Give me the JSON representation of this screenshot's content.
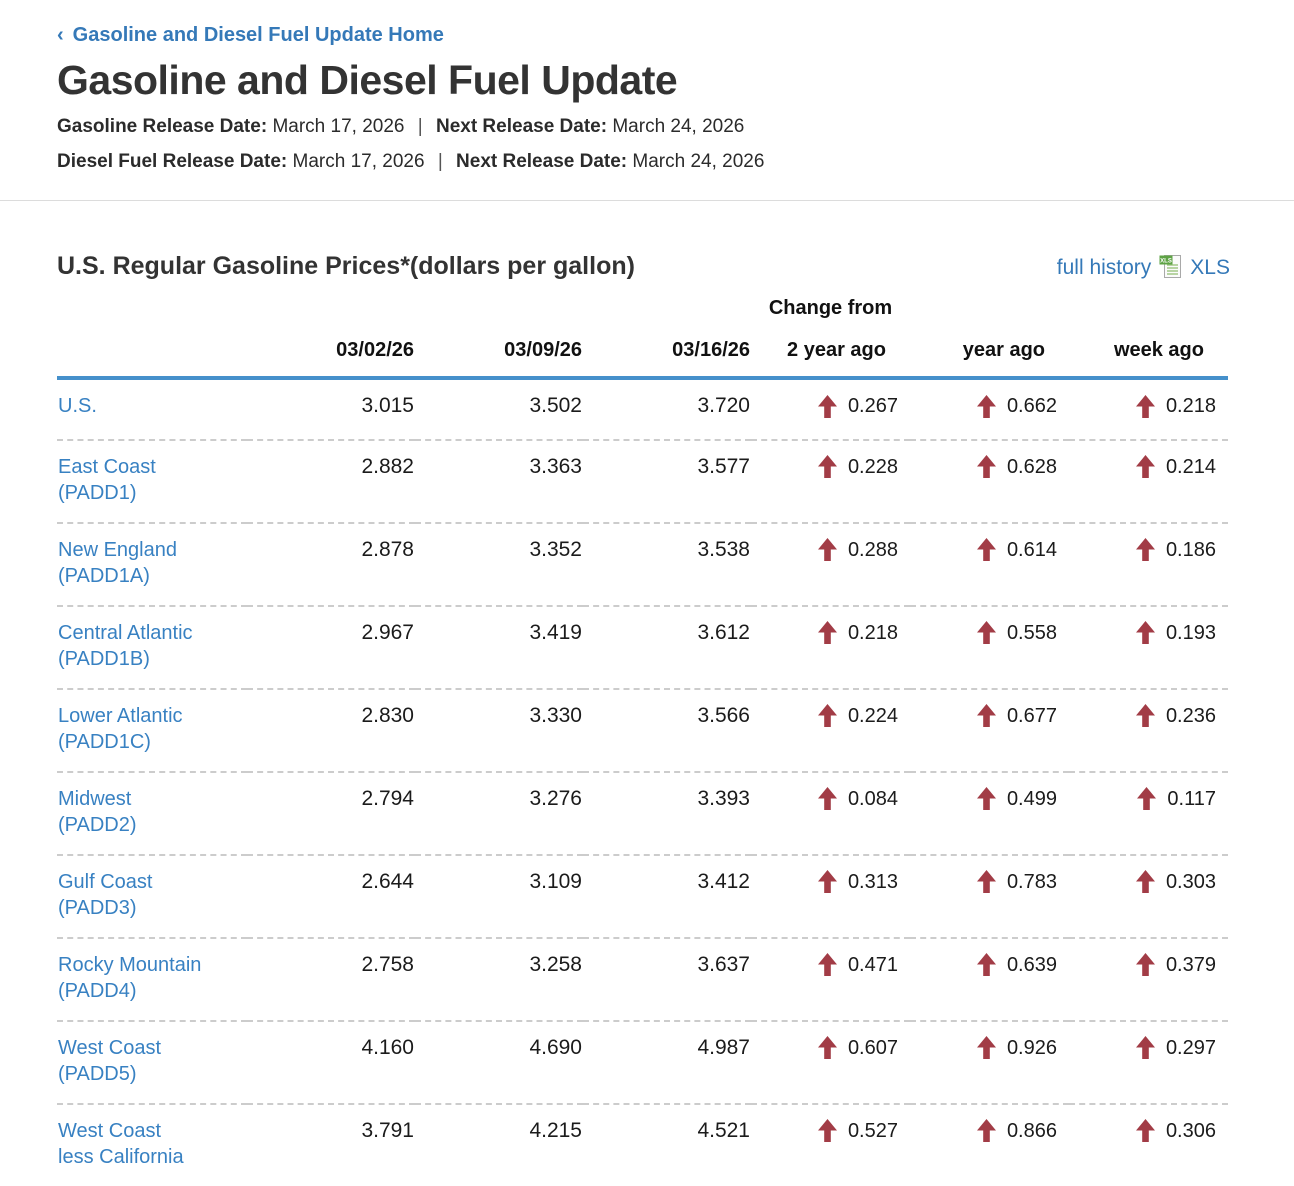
{
  "breadcrumb": {
    "chevron": "‹",
    "label": "Gasoline and Diesel Fuel Update Home"
  },
  "header": {
    "title": "Gasoline and Diesel Fuel Update",
    "release_lines": [
      {
        "label1": "Gasoline Release Date:",
        "value1": "March 17, 2026",
        "separator": "|",
        "label2": "Next Release Date:",
        "value2": "March 24, 2026"
      },
      {
        "label1": "Diesel Fuel Release Date:",
        "value1": "March 17, 2026",
        "separator": "|",
        "label2": "Next Release Date:",
        "value2": "March 24, 2026"
      }
    ]
  },
  "section": {
    "heading": "U.S. Regular Gasoline Prices*(dollars per gallon)",
    "full_history_label": "full history",
    "xls_label": "XLS",
    "xls_icon_badge": "XLS"
  },
  "colors": {
    "link_blue": "#3579b8",
    "region_link_blue": "#3881c2",
    "header_rule_blue": "#4590cb",
    "arrow_up_red": "#a23c46",
    "xls_green": "#5ea345"
  },
  "chart_data": {
    "type": "table",
    "title": "U.S. Regular Gasoline Prices*(dollars per gallon)",
    "change_from_label": "Change from",
    "columns": [
      "03/02/26",
      "03/09/26",
      "03/16/26",
      "2 year ago",
      "year ago",
      "week ago"
    ],
    "change_direction": "up",
    "rows": [
      {
        "region": [
          "U.S."
        ],
        "prices": [
          "3.015",
          "3.502",
          "3.720"
        ],
        "changes": [
          "0.267",
          "0.662",
          "0.218"
        ]
      },
      {
        "region": [
          "East Coast",
          "(PADD1)"
        ],
        "prices": [
          "2.882",
          "3.363",
          "3.577"
        ],
        "changes": [
          "0.228",
          "0.628",
          "0.214"
        ]
      },
      {
        "region": [
          "New England",
          "(PADD1A)"
        ],
        "prices": [
          "2.878",
          "3.352",
          "3.538"
        ],
        "changes": [
          "0.288",
          "0.614",
          "0.186"
        ]
      },
      {
        "region": [
          "Central Atlantic",
          "(PADD1B)"
        ],
        "prices": [
          "2.967",
          "3.419",
          "3.612"
        ],
        "changes": [
          "0.218",
          "0.558",
          "0.193"
        ]
      },
      {
        "region": [
          "Lower Atlantic",
          "(PADD1C)"
        ],
        "prices": [
          "2.830",
          "3.330",
          "3.566"
        ],
        "changes": [
          "0.224",
          "0.677",
          "0.236"
        ]
      },
      {
        "region": [
          "Midwest",
          "(PADD2)"
        ],
        "prices": [
          "2.794",
          "3.276",
          "3.393"
        ],
        "changes": [
          "0.084",
          "0.499",
          "0.117"
        ]
      },
      {
        "region": [
          "Gulf Coast",
          "(PADD3)"
        ],
        "prices": [
          "2.644",
          "3.109",
          "3.412"
        ],
        "changes": [
          "0.313",
          "0.783",
          "0.303"
        ]
      },
      {
        "region": [
          "Rocky Mountain",
          "(PADD4)"
        ],
        "prices": [
          "2.758",
          "3.258",
          "3.637"
        ],
        "changes": [
          "0.471",
          "0.639",
          "0.379"
        ]
      },
      {
        "region": [
          "West Coast",
          "(PADD5)"
        ],
        "prices": [
          "4.160",
          "4.690",
          "4.987"
        ],
        "changes": [
          "0.607",
          "0.926",
          "0.297"
        ]
      },
      {
        "region": [
          "West Coast",
          "less California"
        ],
        "prices": [
          "3.791",
          "4.215",
          "4.521"
        ],
        "changes": [
          "0.527",
          "0.866",
          "0.306"
        ]
      }
    ]
  }
}
